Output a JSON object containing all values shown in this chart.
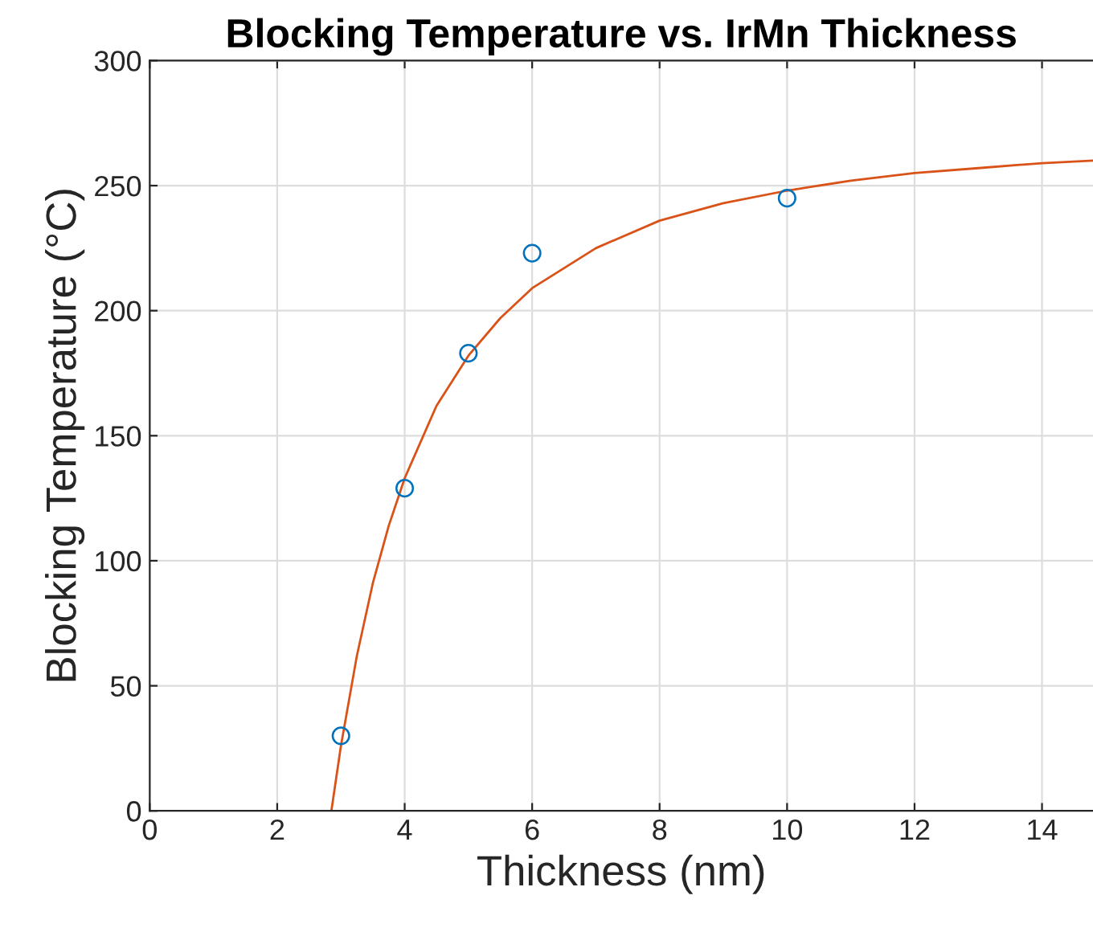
{
  "chart_data": {
    "type": "scatter",
    "title": "Blocking Temperature vs. IrMn Thickness",
    "xlabel": "Thickness (nm)",
    "ylabel": "Blocking Temperature (°C)",
    "xlim": [
      0,
      14.8
    ],
    "ylim": [
      0,
      300
    ],
    "xticks": [
      0,
      2,
      4,
      6,
      8,
      10,
      12,
      14
    ],
    "yticks": [
      0,
      50,
      100,
      150,
      200,
      250,
      300
    ],
    "grid": true,
    "series": [
      {
        "marker": "circle",
        "color": "#0072bd",
        "x": [
          3,
          4,
          5,
          6,
          10
        ],
        "values": [
          30,
          129,
          183,
          223,
          245
        ]
      },
      {
        "type": "line",
        "marker": "none",
        "line_style": "solid",
        "color": "#d95319",
        "x": [
          2.85,
          3,
          3.25,
          3.5,
          3.75,
          4,
          4.5,
          5,
          5.5,
          6,
          7,
          8,
          9,
          10,
          11,
          12,
          13,
          14,
          14.8
        ],
        "values": [
          0,
          26,
          62,
          91,
          114,
          133,
          162,
          182,
          197,
          209,
          225,
          236,
          243,
          248,
          252,
          255,
          257,
          259,
          260
        ]
      }
    ]
  }
}
